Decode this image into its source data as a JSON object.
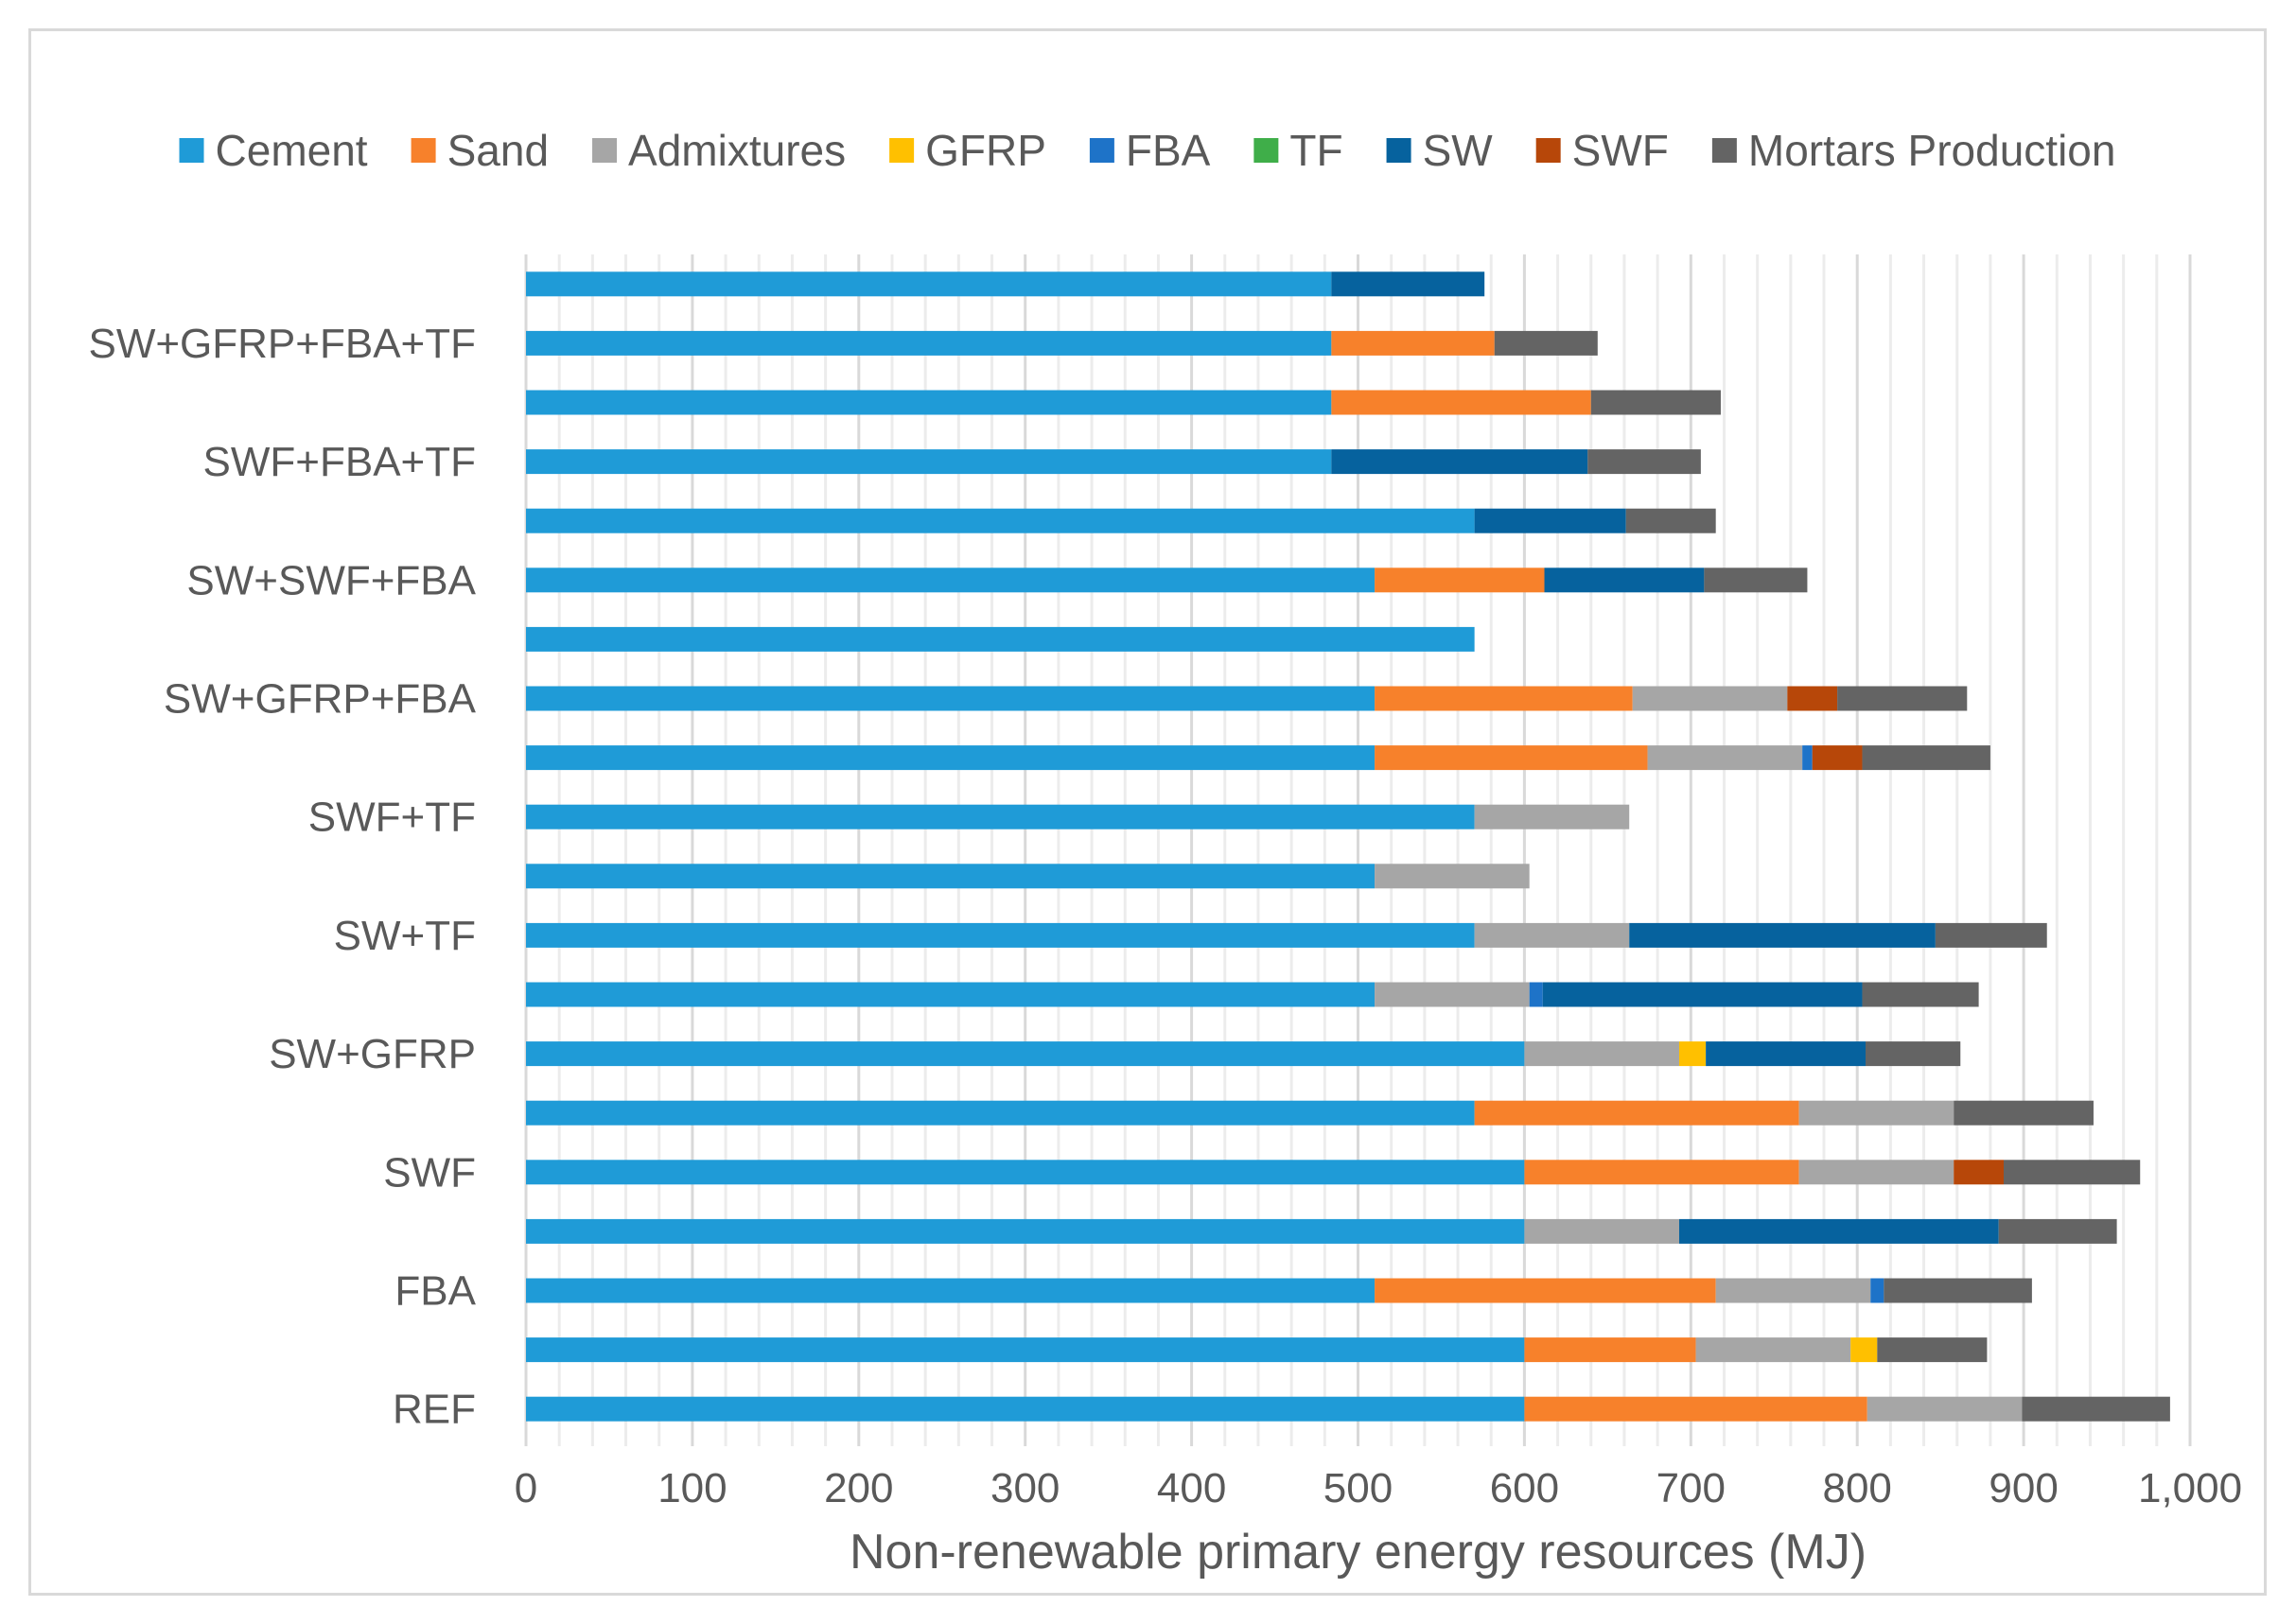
{
  "chart_data": {
    "type": "bar",
    "orientation": "horizontal",
    "stacked": true,
    "title": "",
    "xlabel": "Non-renewable primary energy resources (MJ)",
    "ylabel": "",
    "xlim": [
      0,
      1000
    ],
    "x_ticks": [
      0,
      100,
      200,
      300,
      400,
      500,
      600,
      700,
      800,
      900,
      1000
    ],
    "x_tick_labels": [
      "0",
      "100",
      "200",
      "300",
      "400",
      "500",
      "600",
      "700",
      "800",
      "900",
      "1,000"
    ],
    "grid": "vertical",
    "legend_position": "top",
    "categories": [
      "REF",
      "",
      "FBA",
      "",
      "SWF",
      "",
      "SW+GFRP",
      "",
      "SW+TF",
      "",
      "SWF+TF",
      "",
      "SW+GFRP+FBA",
      "",
      "SW+SWF+FBA",
      "",
      "SWF+FBA+TF",
      "",
      "SW+GFRP+FBA+TF",
      ""
    ],
    "series": [
      {
        "name": "Cement",
        "color": "#1f9bd7",
        "values": [
          600,
          600,
          510,
          600,
          600,
          570,
          600,
          510,
          570,
          510,
          570,
          510,
          510,
          570,
          510,
          570,
          484,
          484,
          484,
          484
        ]
      },
      {
        "name": "Sand",
        "color": "#f7812b",
        "values": [
          206,
          103,
          205,
          0,
          165,
          195,
          0,
          0,
          0,
          0,
          0,
          164,
          155,
          0,
          102,
          0,
          0,
          156,
          98,
          0
        ]
      },
      {
        "name": "Admixtures",
        "color": "#a6a6a6",
        "values": [
          93,
          93,
          93,
          93,
          93,
          93,
          93,
          93,
          93,
          93,
          93,
          93,
          93,
          0,
          0,
          0,
          0,
          0,
          0,
          0
        ]
      },
      {
        "name": "GFRP",
        "color": "#ffc000",
        "values": [
          0,
          16,
          0,
          0,
          0,
          0,
          16,
          0,
          0,
          0,
          0,
          0,
          0,
          0,
          0,
          0,
          0,
          0,
          0,
          0
        ]
      },
      {
        "name": "FBA",
        "color": "#1e73c8",
        "values": [
          0,
          0,
          8,
          0,
          0,
          0,
          0,
          8,
          0,
          0,
          0,
          6,
          0,
          0,
          0,
          0,
          0,
          0,
          0,
          0
        ]
      },
      {
        "name": "TF",
        "color": "#3fae49",
        "values": [
          0,
          0,
          0,
          0,
          0,
          0,
          0,
          0,
          0,
          0,
          0,
          0,
          0,
          0,
          0,
          0,
          0,
          0,
          0,
          0
        ]
      },
      {
        "name": "SW",
        "color": "#06629e",
        "values": [
          0,
          0,
          0,
          192,
          0,
          0,
          96,
          192,
          184,
          0,
          0,
          0,
          0,
          0,
          96,
          91,
          154,
          0,
          0,
          92
        ]
      },
      {
        "name": "SWF",
        "color": "#b74709",
        "values": [
          0,
          0,
          0,
          0,
          30,
          0,
          0,
          0,
          0,
          0,
          0,
          30,
          30,
          0,
          0,
          0,
          0,
          0,
          0,
          0
        ]
      },
      {
        "name": "Mortars Production",
        "color": "#646464",
        "values": [
          89,
          66,
          89,
          71,
          82,
          84,
          57,
          70,
          67,
          0,
          0,
          77,
          78,
          0,
          62,
          54,
          68,
          78,
          62,
          0
        ]
      }
    ]
  }
}
